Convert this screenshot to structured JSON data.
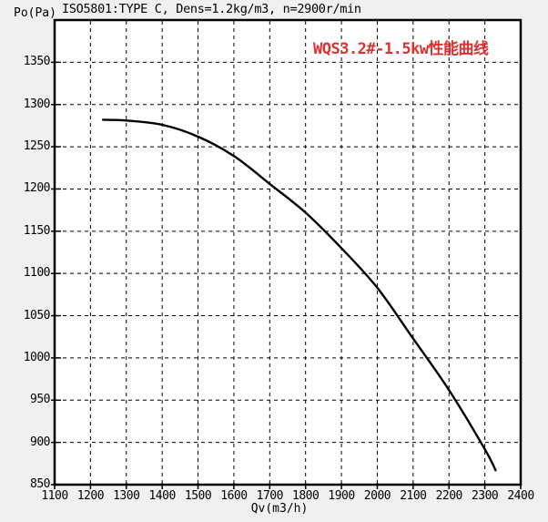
{
  "page": {
    "background": "#f0f0f0",
    "plot_background": "#ffffff",
    "frame_color": "#000000"
  },
  "header": {
    "standard_note": "ISO5801:TYPE C, Dens=1.2kg/m3, n=2900r/min"
  },
  "chart_data": {
    "type": "line",
    "title": "WQS3.2#-1.5kw性能曲线",
    "title_color": "#dd3030",
    "xlabel": "Qv(m3/h)",
    "ylabel": "Po(Pa)",
    "xlim": [
      1100,
      2400
    ],
    "ylim": [
      850,
      1400
    ],
    "x_ticks": [
      1100,
      1200,
      1300,
      1400,
      1500,
      1600,
      1700,
      1800,
      1900,
      2000,
      2100,
      2200,
      2300,
      2400
    ],
    "y_ticks": [
      850,
      900,
      950,
      1000,
      1050,
      1100,
      1150,
      1200,
      1250,
      1300,
      1350
    ],
    "grid": "dashed",
    "legend": "none",
    "series": [
      {
        "name": "WQS3.2#-1.5kw",
        "color": "#000000",
        "points": [
          [
            1235,
            1282
          ],
          [
            1300,
            1281
          ],
          [
            1400,
            1276
          ],
          [
            1500,
            1262
          ],
          [
            1600,
            1239
          ],
          [
            1700,
            1206
          ],
          [
            1800,
            1172
          ],
          [
            1900,
            1130
          ],
          [
            2000,
            1083
          ],
          [
            2100,
            1023
          ],
          [
            2200,
            962
          ],
          [
            2300,
            892
          ],
          [
            2330,
            867
          ]
        ]
      }
    ]
  }
}
